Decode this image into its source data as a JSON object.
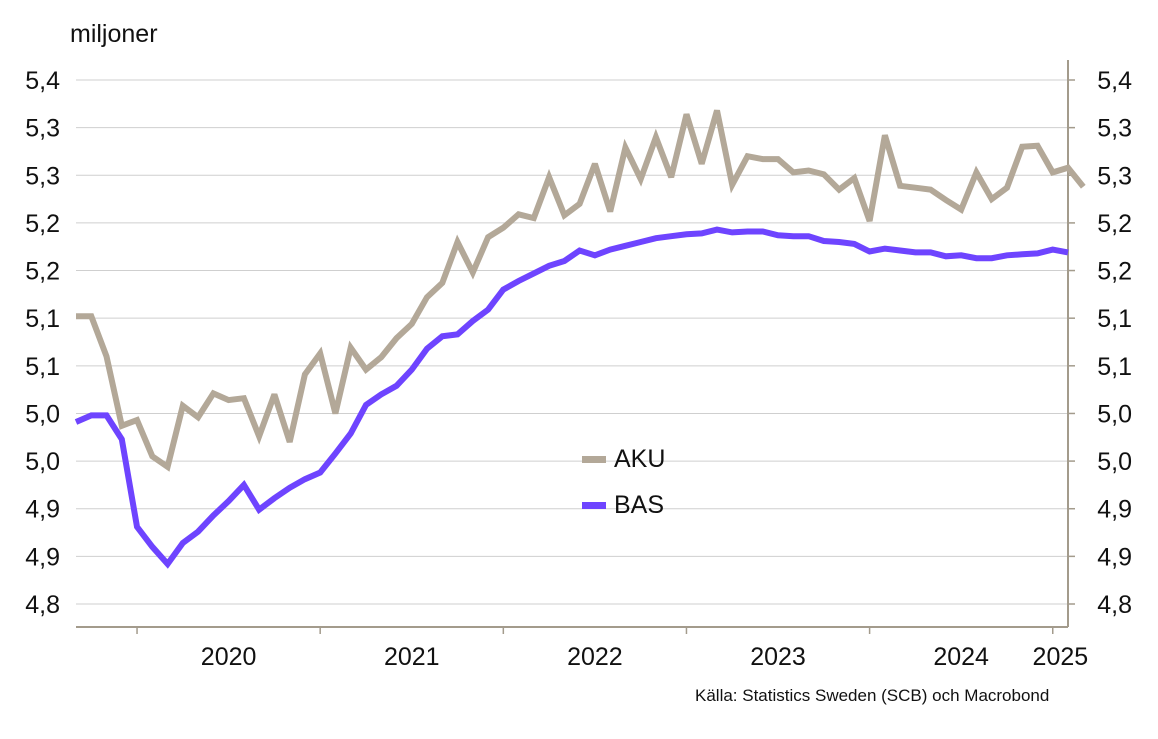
{
  "chart_data": {
    "type": "line",
    "ylabel": "miljoner",
    "source": "Källa: Statistics Sweden (SCB)  och Macrobond",
    "x_ticks": [
      "2020",
      "2021",
      "2022",
      "2023",
      "2024",
      "2025"
    ],
    "y_ticks": [
      "4,8",
      "4,9",
      "4,9",
      "5,0",
      "5,0",
      "5,1",
      "5,1",
      "5,2",
      "5,2",
      "5,3",
      "5,3",
      "5,4"
    ],
    "ylim": [
      4.8,
      5.35
    ],
    "grid": true,
    "legend_position": "center",
    "x_start": "2019-08",
    "x_end": "2025-01",
    "series": [
      {
        "name": "AKU",
        "color": "#b3a898",
        "values": [
          5.102,
          5.102,
          5.06,
          4.987,
          4.993,
          4.955,
          4.944,
          5.008,
          4.996,
          5.021,
          5.014,
          5.016,
          4.976,
          5.02,
          4.97,
          5.041,
          5.063,
          5.0,
          5.069,
          5.046,
          5.059,
          5.079,
          5.094,
          5.122,
          5.137,
          5.18,
          5.148,
          5.185,
          5.195,
          5.209,
          5.205,
          5.248,
          5.208,
          5.22,
          5.262,
          5.212,
          5.279,
          5.246,
          5.29,
          5.248,
          5.314,
          5.262,
          5.318,
          5.24,
          5.27,
          5.267,
          5.267,
          5.253,
          5.255,
          5.251,
          5.235,
          5.247,
          5.202,
          5.292,
          5.239,
          5.237,
          5.235,
          5.224,
          5.214,
          5.253,
          5.225,
          5.237,
          5.28,
          5.281,
          5.253,
          5.258,
          5.238
        ]
      },
      {
        "name": "BAS",
        "color": "#6e44ff",
        "values": [
          4.991,
          4.998,
          4.998,
          4.973,
          4.881,
          4.86,
          4.842,
          4.864,
          4.876,
          4.893,
          4.908,
          4.925,
          4.899,
          4.911,
          4.922,
          4.931,
          4.938,
          4.958,
          4.979,
          5.009,
          5.02,
          5.029,
          5.046,
          5.068,
          5.081,
          5.083,
          5.097,
          5.109,
          5.13,
          5.139,
          5.147,
          5.155,
          5.16,
          5.171,
          5.166,
          5.172,
          5.176,
          5.18,
          5.184,
          5.186,
          5.188,
          5.189,
          5.193,
          5.19,
          5.191,
          5.191,
          5.187,
          5.186,
          5.186,
          5.181,
          5.18,
          5.178,
          5.17,
          5.173,
          5.171,
          5.169,
          5.169,
          5.165,
          5.166,
          5.163,
          5.163,
          5.166,
          5.167,
          5.168,
          5.172,
          5.169
        ]
      }
    ]
  }
}
